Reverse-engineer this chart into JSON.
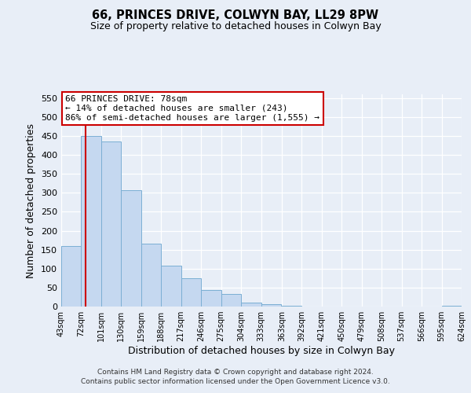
{
  "title": "66, PRINCES DRIVE, COLWYN BAY, LL29 8PW",
  "subtitle": "Size of property relative to detached houses in Colwyn Bay",
  "xlabel": "Distribution of detached houses by size in Colwyn Bay",
  "ylabel": "Number of detached properties",
  "bin_edges": [
    43,
    72,
    101,
    130,
    159,
    188,
    217,
    246,
    275,
    304,
    333,
    363,
    392,
    421,
    450,
    479,
    508,
    537,
    566,
    595,
    624
  ],
  "bin_heights": [
    160,
    450,
    435,
    308,
    165,
    108,
    74,
    43,
    33,
    10,
    7,
    3,
    0,
    0,
    0,
    0,
    0,
    0,
    0,
    2
  ],
  "bar_color": "#c5d8f0",
  "bar_edge_color": "#7bafd4",
  "property_line_x": 78,
  "property_line_color": "#cc0000",
  "ylim": [
    0,
    560
  ],
  "yticks": [
    0,
    50,
    100,
    150,
    200,
    250,
    300,
    350,
    400,
    450,
    500,
    550
  ],
  "tick_labels": [
    "43sqm",
    "72sqm",
    "101sqm",
    "130sqm",
    "159sqm",
    "188sqm",
    "217sqm",
    "246sqm",
    "275sqm",
    "304sqm",
    "333sqm",
    "363sqm",
    "392sqm",
    "421sqm",
    "450sqm",
    "479sqm",
    "508sqm",
    "537sqm",
    "566sqm",
    "595sqm",
    "624sqm"
  ],
  "annotation_title": "66 PRINCES DRIVE: 78sqm",
  "annotation_line1": "← 14% of detached houses are smaller (243)",
  "annotation_line2": "86% of semi-detached houses are larger (1,555) →",
  "annotation_box_color": "#ffffff",
  "annotation_box_edge_color": "#cc0000",
  "footer_line1": "Contains HM Land Registry data © Crown copyright and database right 2024.",
  "footer_line2": "Contains public sector information licensed under the Open Government Licence v3.0.",
  "background_color": "#e8eef7",
  "plot_bg_color": "#e8eef7",
  "grid_color": "#ffffff"
}
